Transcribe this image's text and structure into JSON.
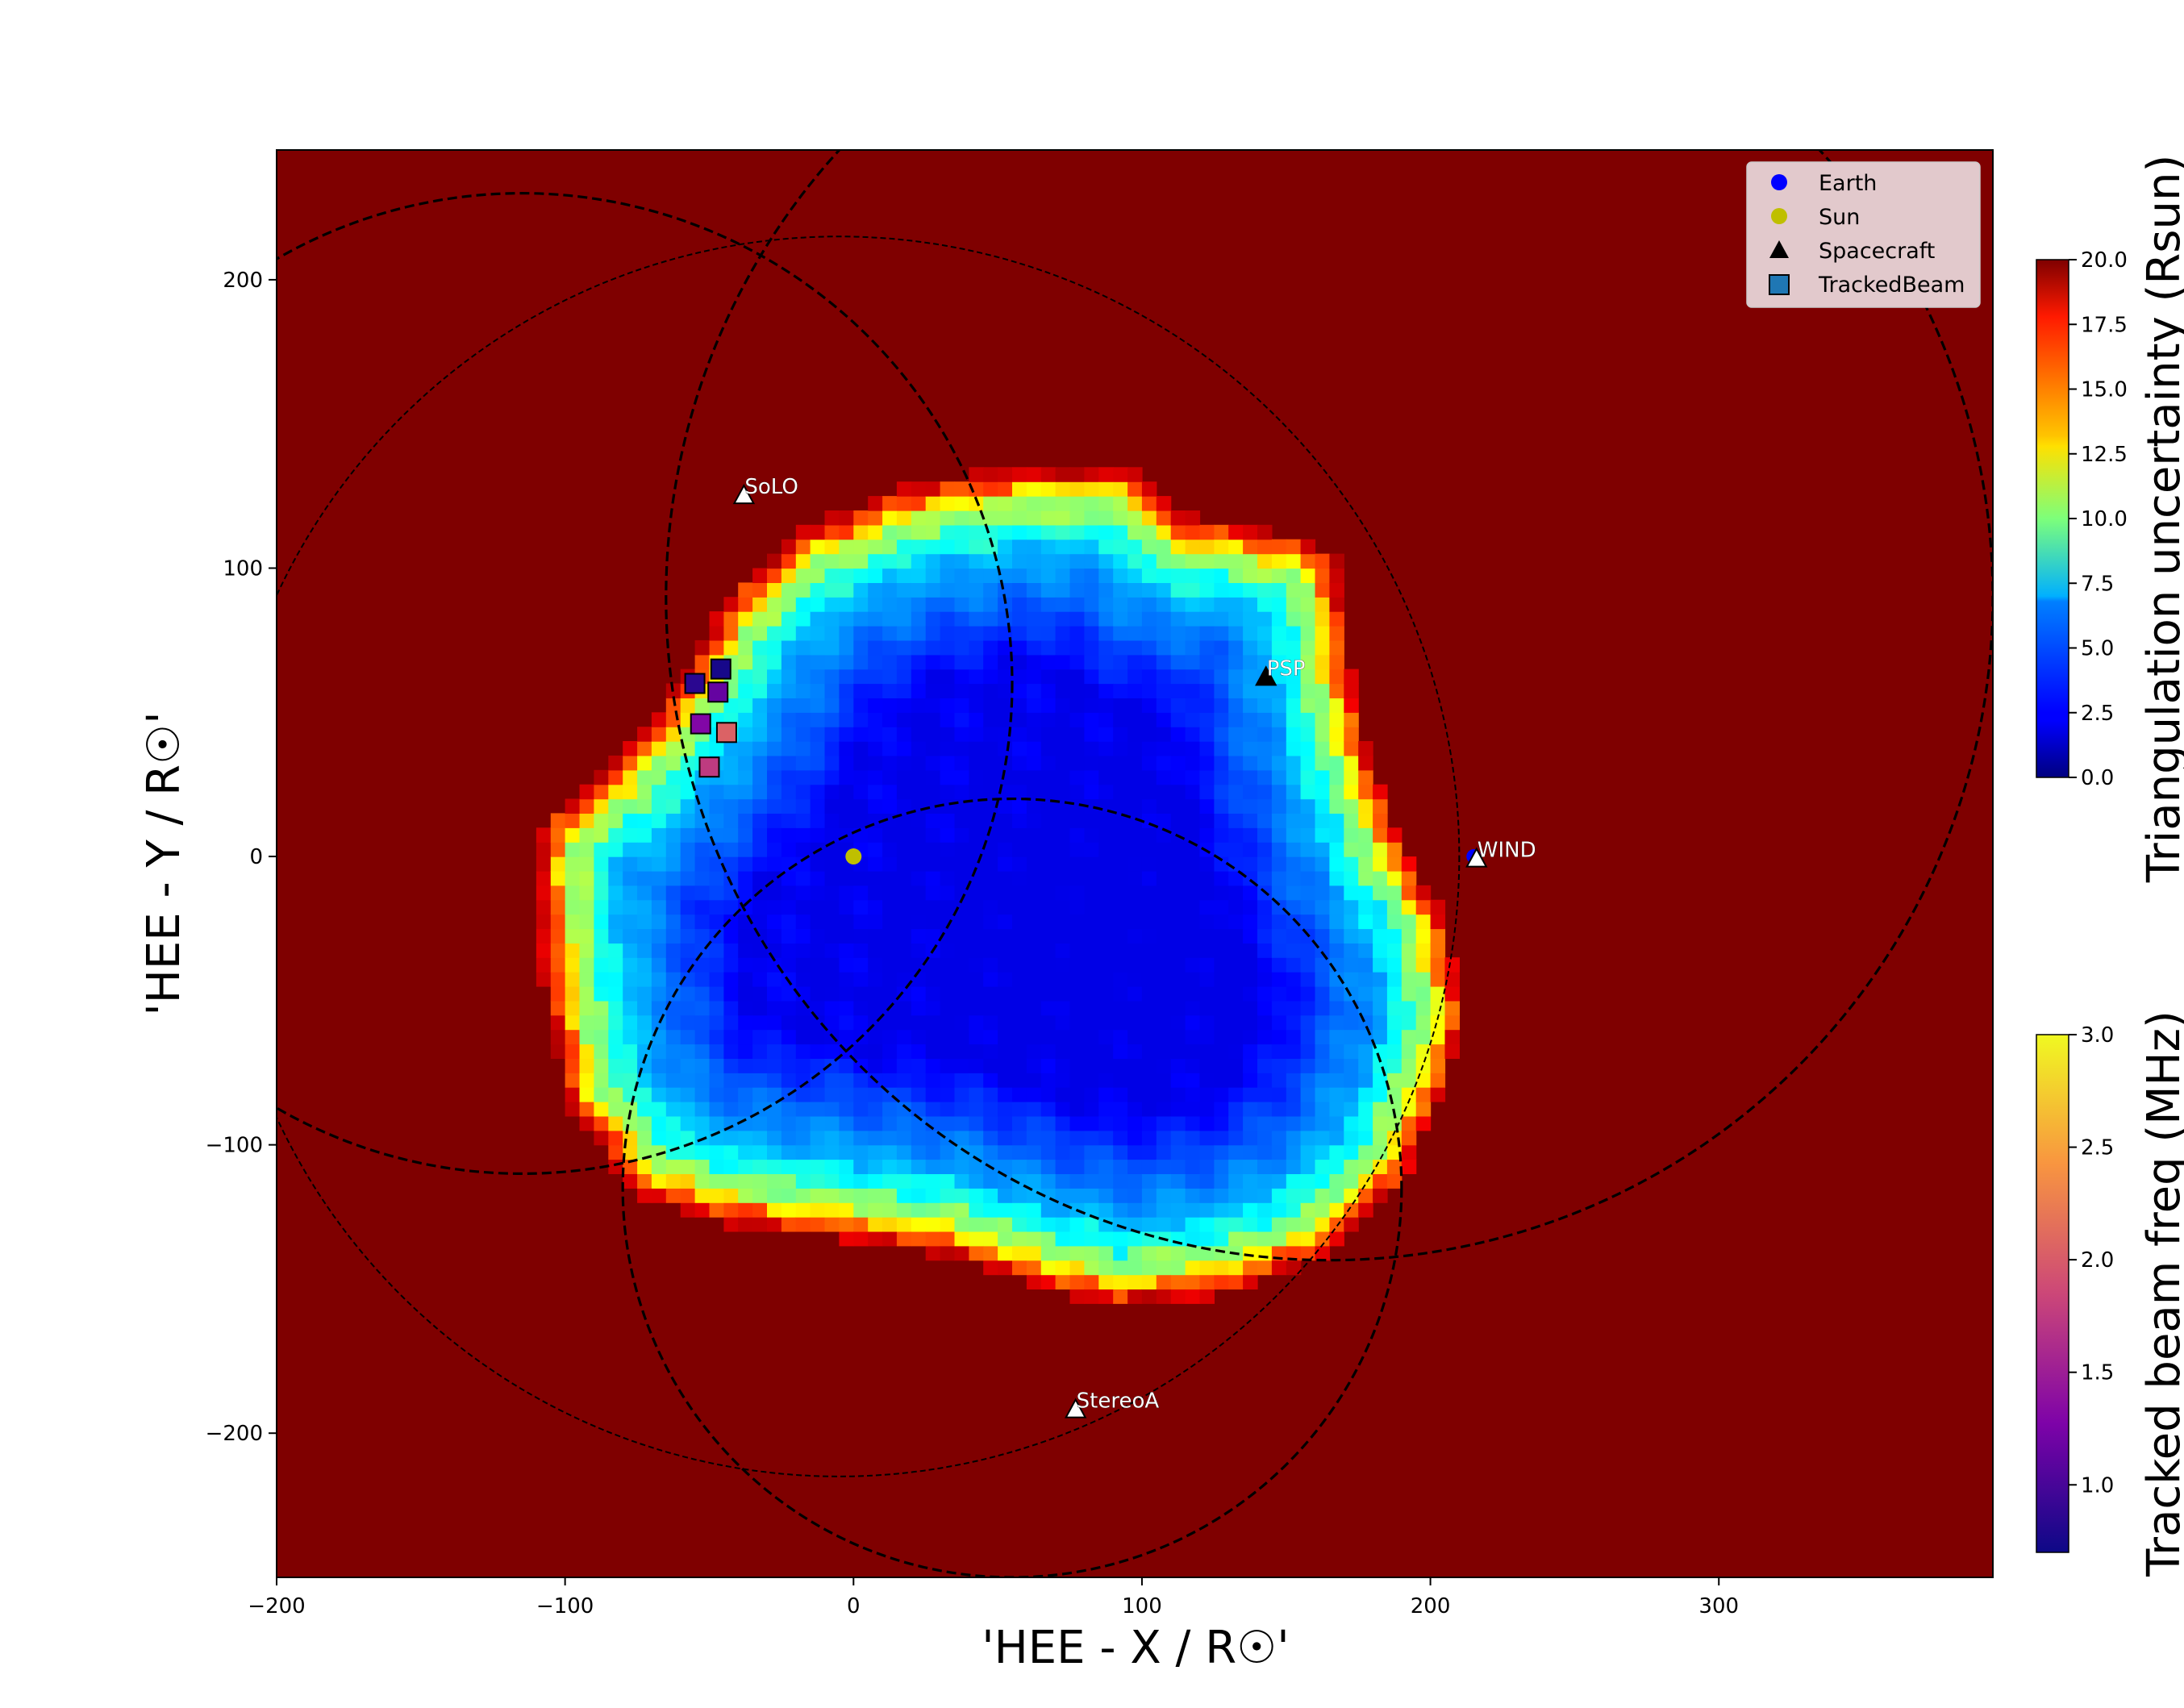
{
  "chart_data": {
    "type": "heatmap",
    "title": "",
    "xlabel": "'HEE - X / R☉'",
    "ylabel": "'HEE - Y / R☉'",
    "xlim": [
      -200,
      395
    ],
    "ylim": [
      -250,
      245
    ],
    "xticks": [
      -200,
      -100,
      0,
      100,
      200,
      300
    ],
    "yticks": [
      -200,
      -100,
      0,
      100,
      200
    ],
    "xtick_labels": [
      "−200",
      "−100",
      "0",
      "100",
      "200",
      "300"
    ],
    "ytick_labels": [
      "−200",
      "−100",
      "0",
      "100",
      "200"
    ],
    "heatmap": {
      "colormap": "jet",
      "label": "Triangulation uncertainty (Rsun)",
      "vmin": 0,
      "vmax": 20,
      "ticks": [
        0.0,
        2.5,
        5.0,
        7.5,
        10.0,
        12.5,
        15.0,
        17.5,
        20.0
      ],
      "tick_labels": [
        "0.0",
        "2.5",
        "5.0",
        "7.5",
        "10.0",
        "12.5",
        "15.0",
        "17.5",
        "20.0"
      ],
      "background_value": 20,
      "low_region_center": [
        85,
        -25
      ],
      "notes": "uncertainty < 20 inside irregular region spanning approx x -110..215, y -160..135"
    },
    "circles": [
      {
        "center": [
          -5,
          0
        ],
        "radius": 215,
        "style": "dashed-thin"
      },
      {
        "center": [
          165,
          90
        ],
        "radius": 230,
        "style": "dashed"
      },
      {
        "center": [
          55,
          -115
        ],
        "radius": 135,
        "style": "dashed"
      },
      {
        "center": [
          -115,
          60
        ],
        "radius": 170,
        "style": "dashed"
      }
    ],
    "points": {
      "earth": {
        "x": 215,
        "y": 0,
        "color": "#0000ff"
      },
      "sun": {
        "x": 0,
        "y": 0,
        "color": "#bfbf00"
      },
      "spacecraft": [
        {
          "name": "SoLO",
          "x": -38,
          "y": 125,
          "fill": "#ffffff"
        },
        {
          "name": "PSP",
          "x": 143,
          "y": 62,
          "fill": "#000000"
        },
        {
          "name": "WIND",
          "x": 216,
          "y": -1,
          "fill": "#ffffff"
        },
        {
          "name": "StereoA",
          "x": 77,
          "y": -192,
          "fill": "#ffffff"
        }
      ]
    },
    "tracked_beam": {
      "colormap": "plasma",
      "label": "Tracked beam freq (MHz)",
      "vmin": 0.7,
      "vmax": 3.0,
      "ticks": [
        1.0,
        1.5,
        2.0,
        2.5,
        3.0
      ],
      "tick_labels": [
        "1.0",
        "1.5",
        "2.0",
        "2.5",
        "3.0"
      ],
      "points": [
        {
          "x": -46,
          "y": 65,
          "freq": 0.75
        },
        {
          "x": -55,
          "y": 60,
          "freq": 0.85
        },
        {
          "x": -47,
          "y": 57,
          "freq": 1.15
        },
        {
          "x": -53,
          "y": 46,
          "freq": 1.3
        },
        {
          "x": -44,
          "y": 43,
          "freq": 2.05
        },
        {
          "x": -50,
          "y": 31,
          "freq": 1.75
        }
      ]
    },
    "legend": {
      "placement": "top-right",
      "entries": [
        "Earth",
        "Sun",
        "Spacecraft",
        "TrackedBeam"
      ],
      "colors": {
        "Earth": "#0000ff",
        "Sun": "#bfbf00",
        "Spacecraft": "#000000",
        "TrackedBeam": "#1f77b4"
      }
    },
    "grid": false
  }
}
